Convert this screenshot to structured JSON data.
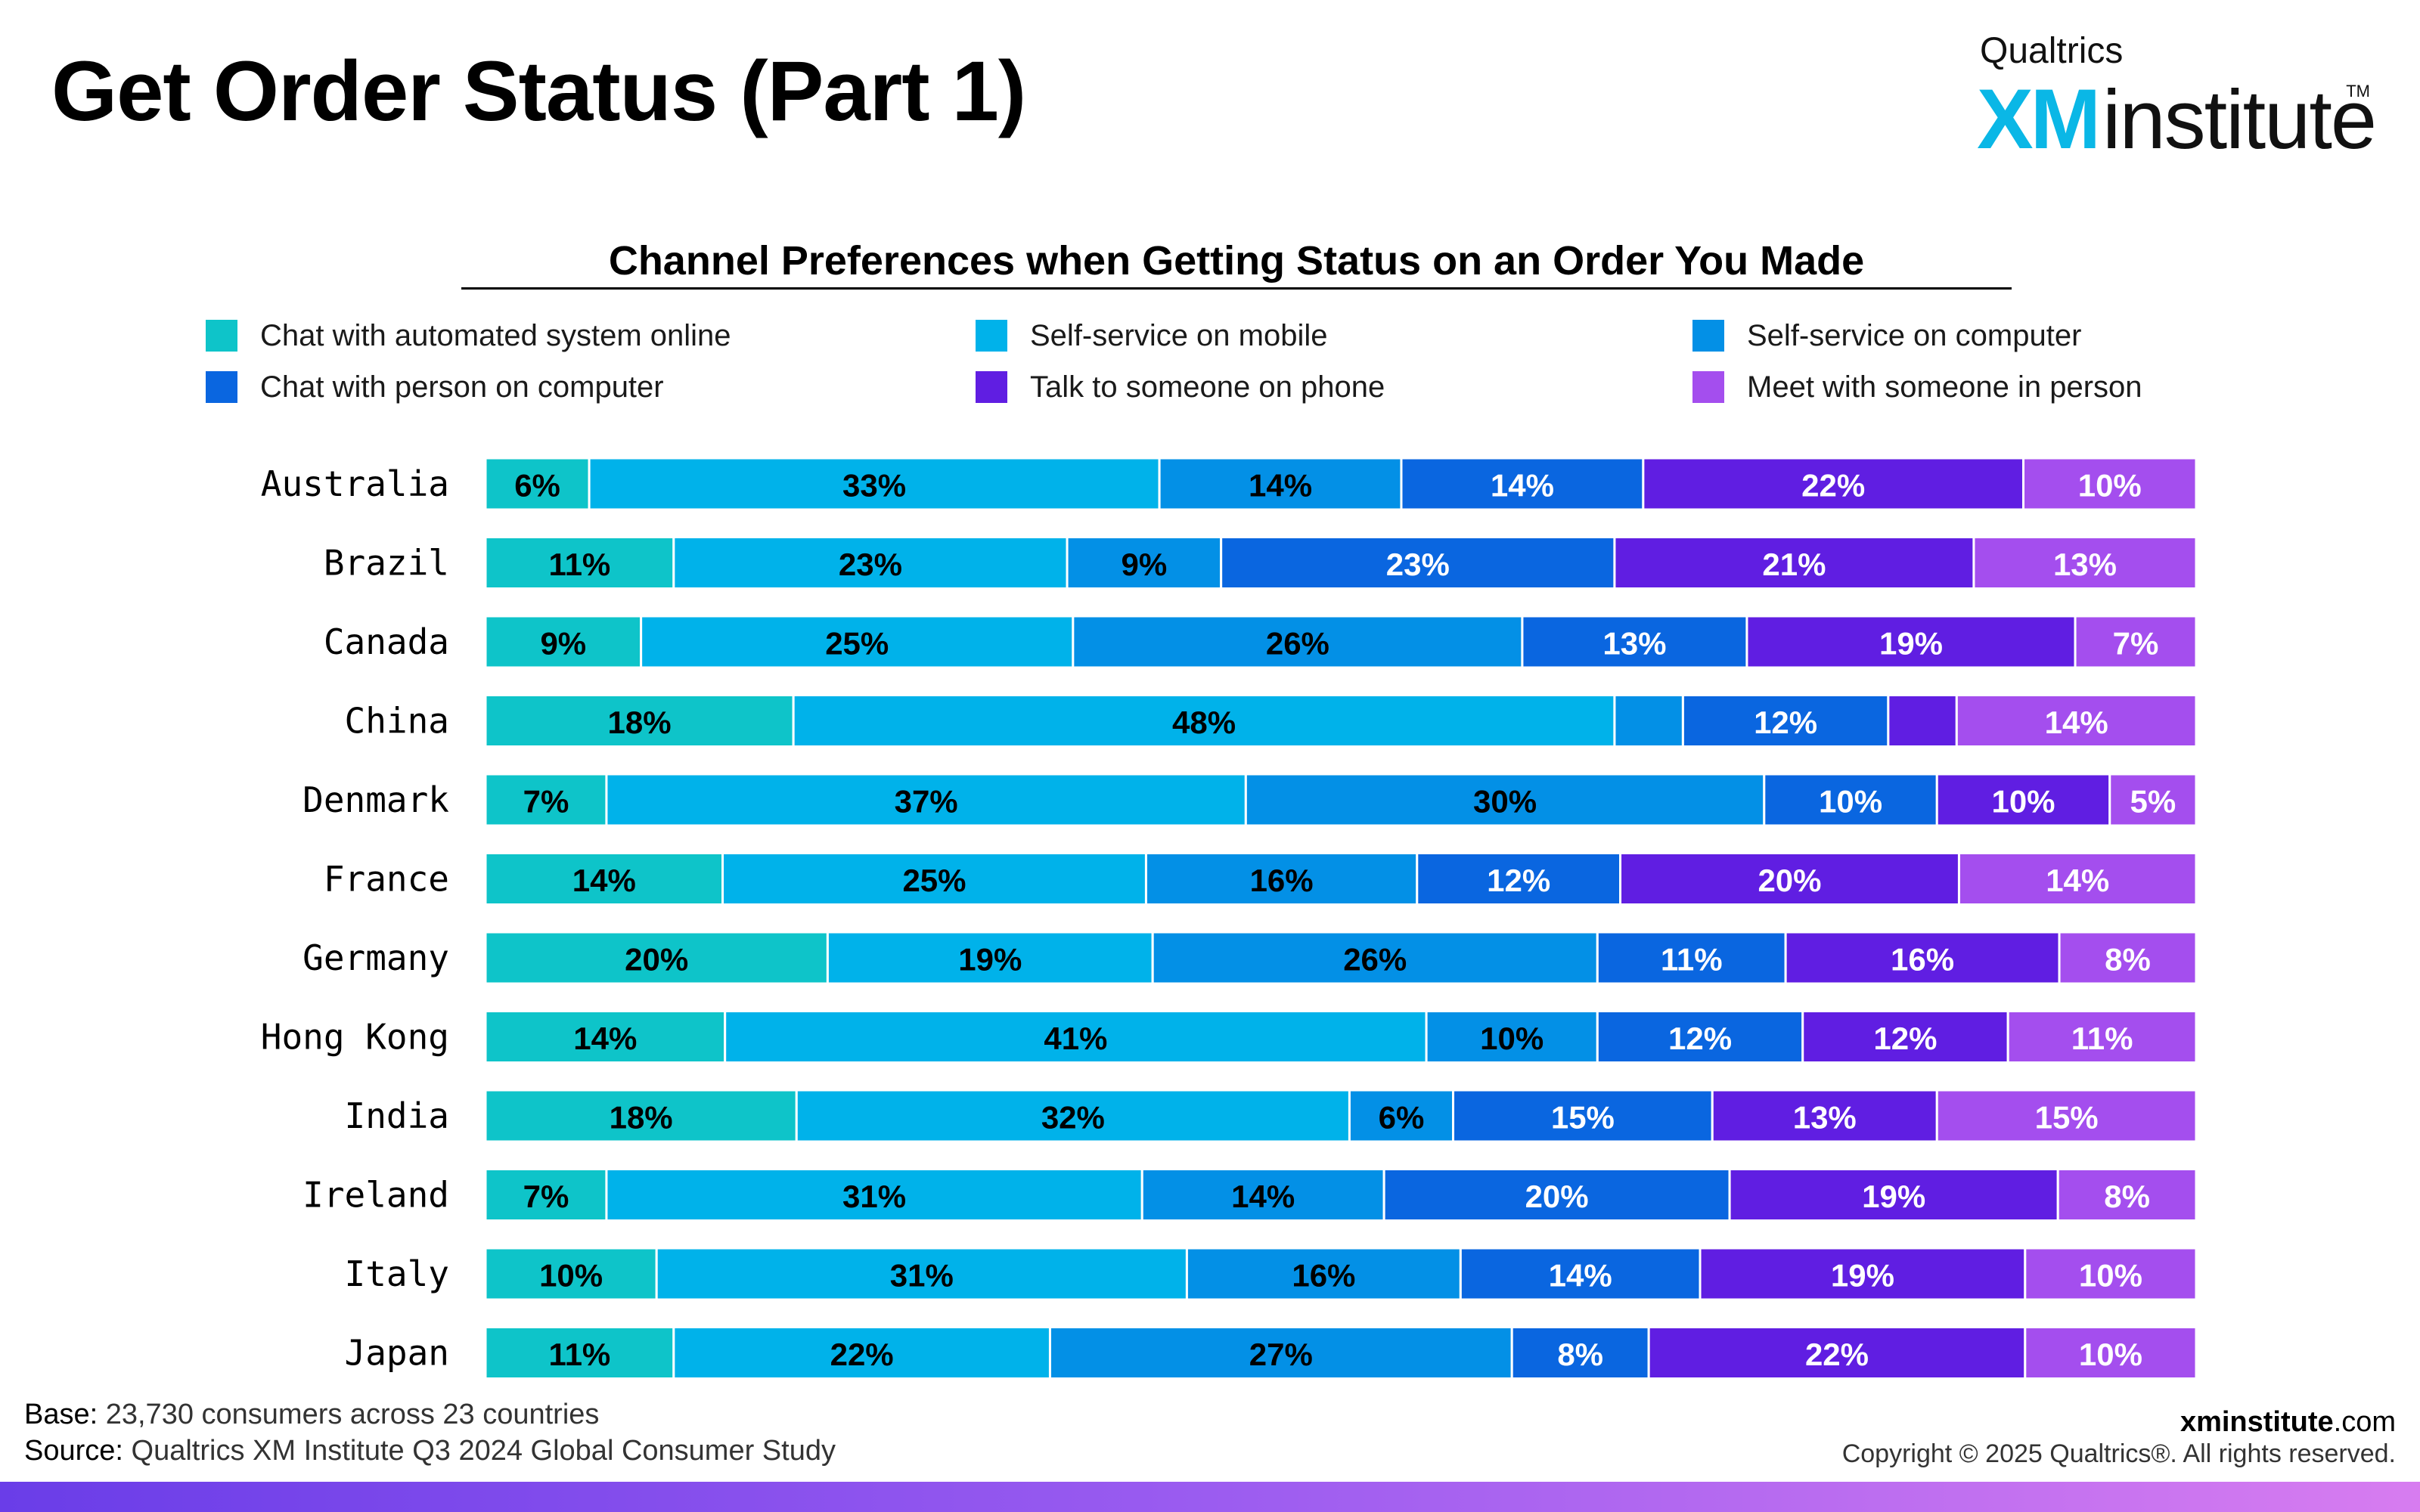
{
  "page": {
    "title": "Get Order Status (Part 1)"
  },
  "logo": {
    "brand_top": "Qualtrics",
    "brand_xm": "XM",
    "brand_rest": "institute",
    "tm": "TM"
  },
  "footer": {
    "base_label": "Base:",
    "base_text": "23,730 consumers across 23 countries",
    "source_label": "Source:",
    "source_text": "Qualtrics XM Institute Q3 2024 Global Consumer Study",
    "site_bold": "xminstitute",
    "site_rest": ".com",
    "copyright": "Copyright © 2025 Qualtrics®. All rights reserved."
  },
  "chart_data": {
    "type": "bar",
    "orientation": "horizontal",
    "stacked": "100%",
    "title": "Channel Preferences when Getting Status on an Order You Made",
    "legend_position": "top",
    "grid": false,
    "xlim": [
      0,
      100
    ],
    "unit": "%",
    "categories": [
      "Australia",
      "Brazil",
      "Canada",
      "China",
      "Denmark",
      "France",
      "Germany",
      "Hong Kong",
      "India",
      "Ireland",
      "Italy",
      "Japan"
    ],
    "series": [
      {
        "name": "Chat with automated system online",
        "color": "#0ec4c9",
        "label_color": "#000000",
        "values": [
          6,
          11,
          9,
          18,
          7,
          14,
          20,
          14,
          18,
          7,
          10,
          11
        ],
        "labels": [
          "6%",
          "11%",
          "9%",
          "18%",
          "7%",
          "14%",
          "20%",
          "14%",
          "18%",
          "7%",
          "10%",
          "11%"
        ]
      },
      {
        "name": "Self-service on mobile",
        "color": "#00b2ea",
        "label_color": "#000000",
        "values": [
          33,
          23,
          25,
          48,
          37,
          25,
          19,
          41,
          32,
          31,
          31,
          22
        ],
        "labels": [
          "33%",
          "23%",
          "25%",
          "48%",
          "37%",
          "25%",
          "19%",
          "41%",
          "32%",
          "31%",
          "31%",
          "22%"
        ]
      },
      {
        "name": "Self-service on computer",
        "color": "#0390e6",
        "label_color": "#000000",
        "values": [
          14,
          9,
          26,
          4,
          30,
          16,
          26,
          10,
          6,
          14,
          16,
          27
        ],
        "labels": [
          "14%",
          "9%",
          "26%",
          "",
          "30%",
          "16%",
          "26%",
          "10%",
          "6%",
          "14%",
          "16%",
          "27%"
        ]
      },
      {
        "name": "Chat with person on computer",
        "color": "#0a66e0",
        "label_color": "#ffffff",
        "values": [
          14,
          23,
          13,
          12,
          10,
          12,
          11,
          12,
          15,
          20,
          14,
          8
        ],
        "labels": [
          "14%",
          "23%",
          "13%",
          "12%",
          "10%",
          "12%",
          "11%",
          "12%",
          "15%",
          "20%",
          "14%",
          "8%"
        ]
      },
      {
        "name": "Talk to someone on phone",
        "color": "#601ee2",
        "label_color": "#ffffff",
        "values": [
          22,
          21,
          19,
          4,
          10,
          20,
          16,
          12,
          13,
          19,
          19,
          22
        ],
        "labels": [
          "22%",
          "21%",
          "19%",
          "",
          "10%",
          "20%",
          "16%",
          "12%",
          "13%",
          "19%",
          "19%",
          "22%"
        ]
      },
      {
        "name": "Meet with someone in person",
        "color": "#a44eee",
        "label_color": "#ffffff",
        "values": [
          10,
          13,
          7,
          14,
          5,
          14,
          8,
          11,
          15,
          8,
          10,
          10
        ],
        "labels": [
          "10%",
          "13%",
          "7%",
          "14%",
          "5%",
          "14%",
          "8%",
          "11%",
          "15%",
          "8%",
          "10%",
          "10%"
        ]
      }
    ]
  }
}
